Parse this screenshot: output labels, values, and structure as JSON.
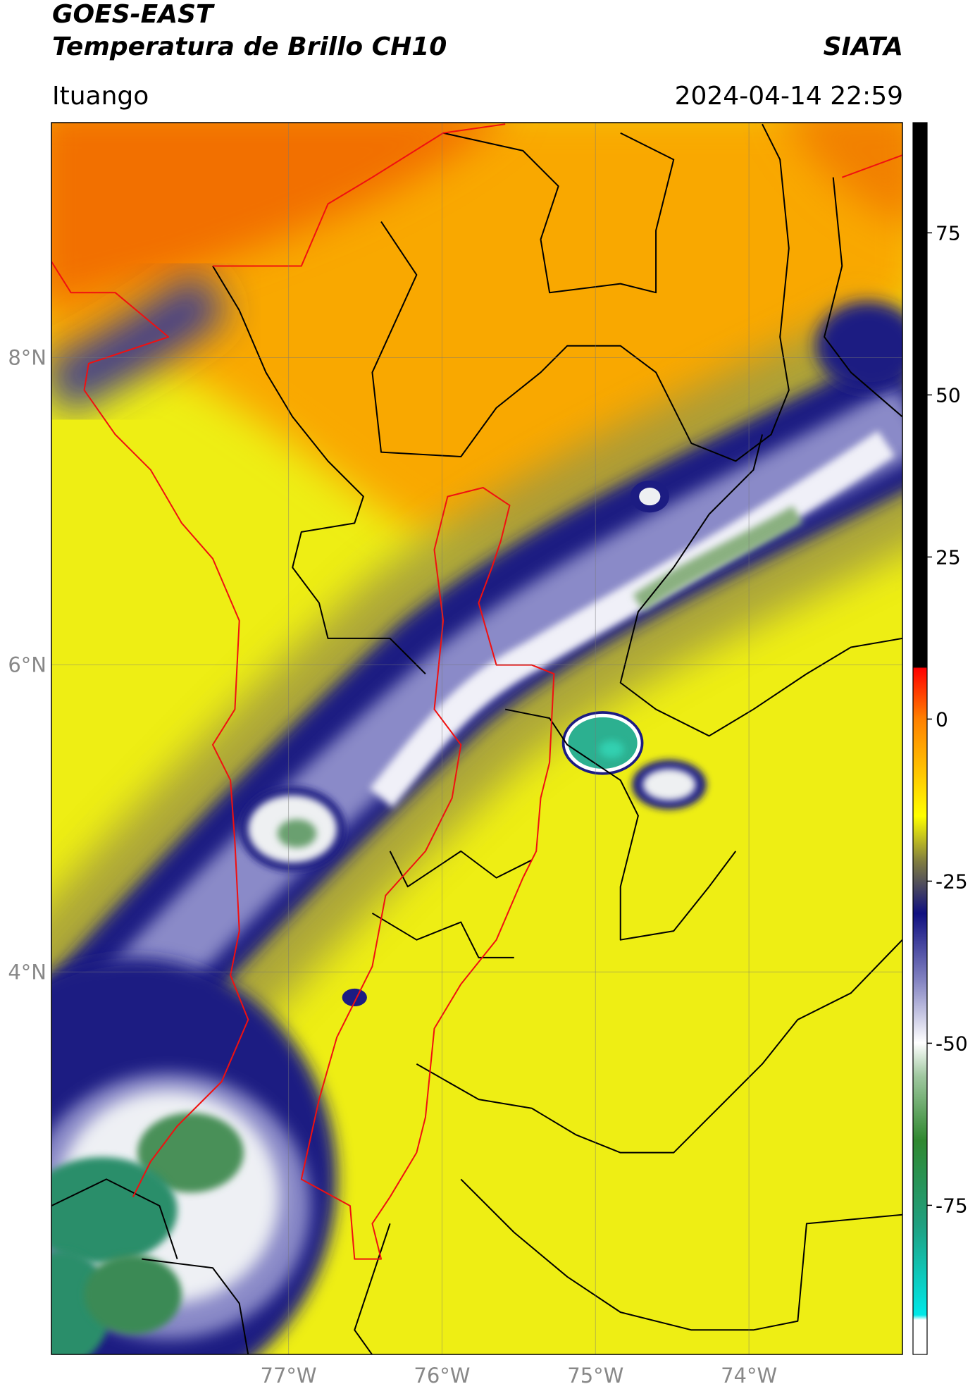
{
  "header": {
    "satellite": "GOES-EAST",
    "product": "Temperatura de Brillo CH10",
    "source": "SIATA",
    "location": "Ituango",
    "timestamp": "2024-04-14 22:59"
  },
  "chart_data": {
    "type": "map",
    "xlim": [
      -78.545,
      -73.0
    ],
    "ylim": [
      1.51,
      9.53
    ],
    "xticks": [
      {
        "value": -77,
        "label": "77°W"
      },
      {
        "value": -76,
        "label": "76°W"
      },
      {
        "value": -75,
        "label": "75°W"
      },
      {
        "value": -74,
        "label": "74°W"
      }
    ],
    "yticks": [
      {
        "value": 4,
        "label": "4°N"
      },
      {
        "value": 6,
        "label": "6°N"
      },
      {
        "value": 8,
        "label": "8°N"
      }
    ],
    "grid": true,
    "colorbar": {
      "clim": [
        -98,
        92
      ],
      "ticks": [
        -75,
        -50,
        -25,
        0,
        25,
        50,
        75
      ]
    }
  }
}
